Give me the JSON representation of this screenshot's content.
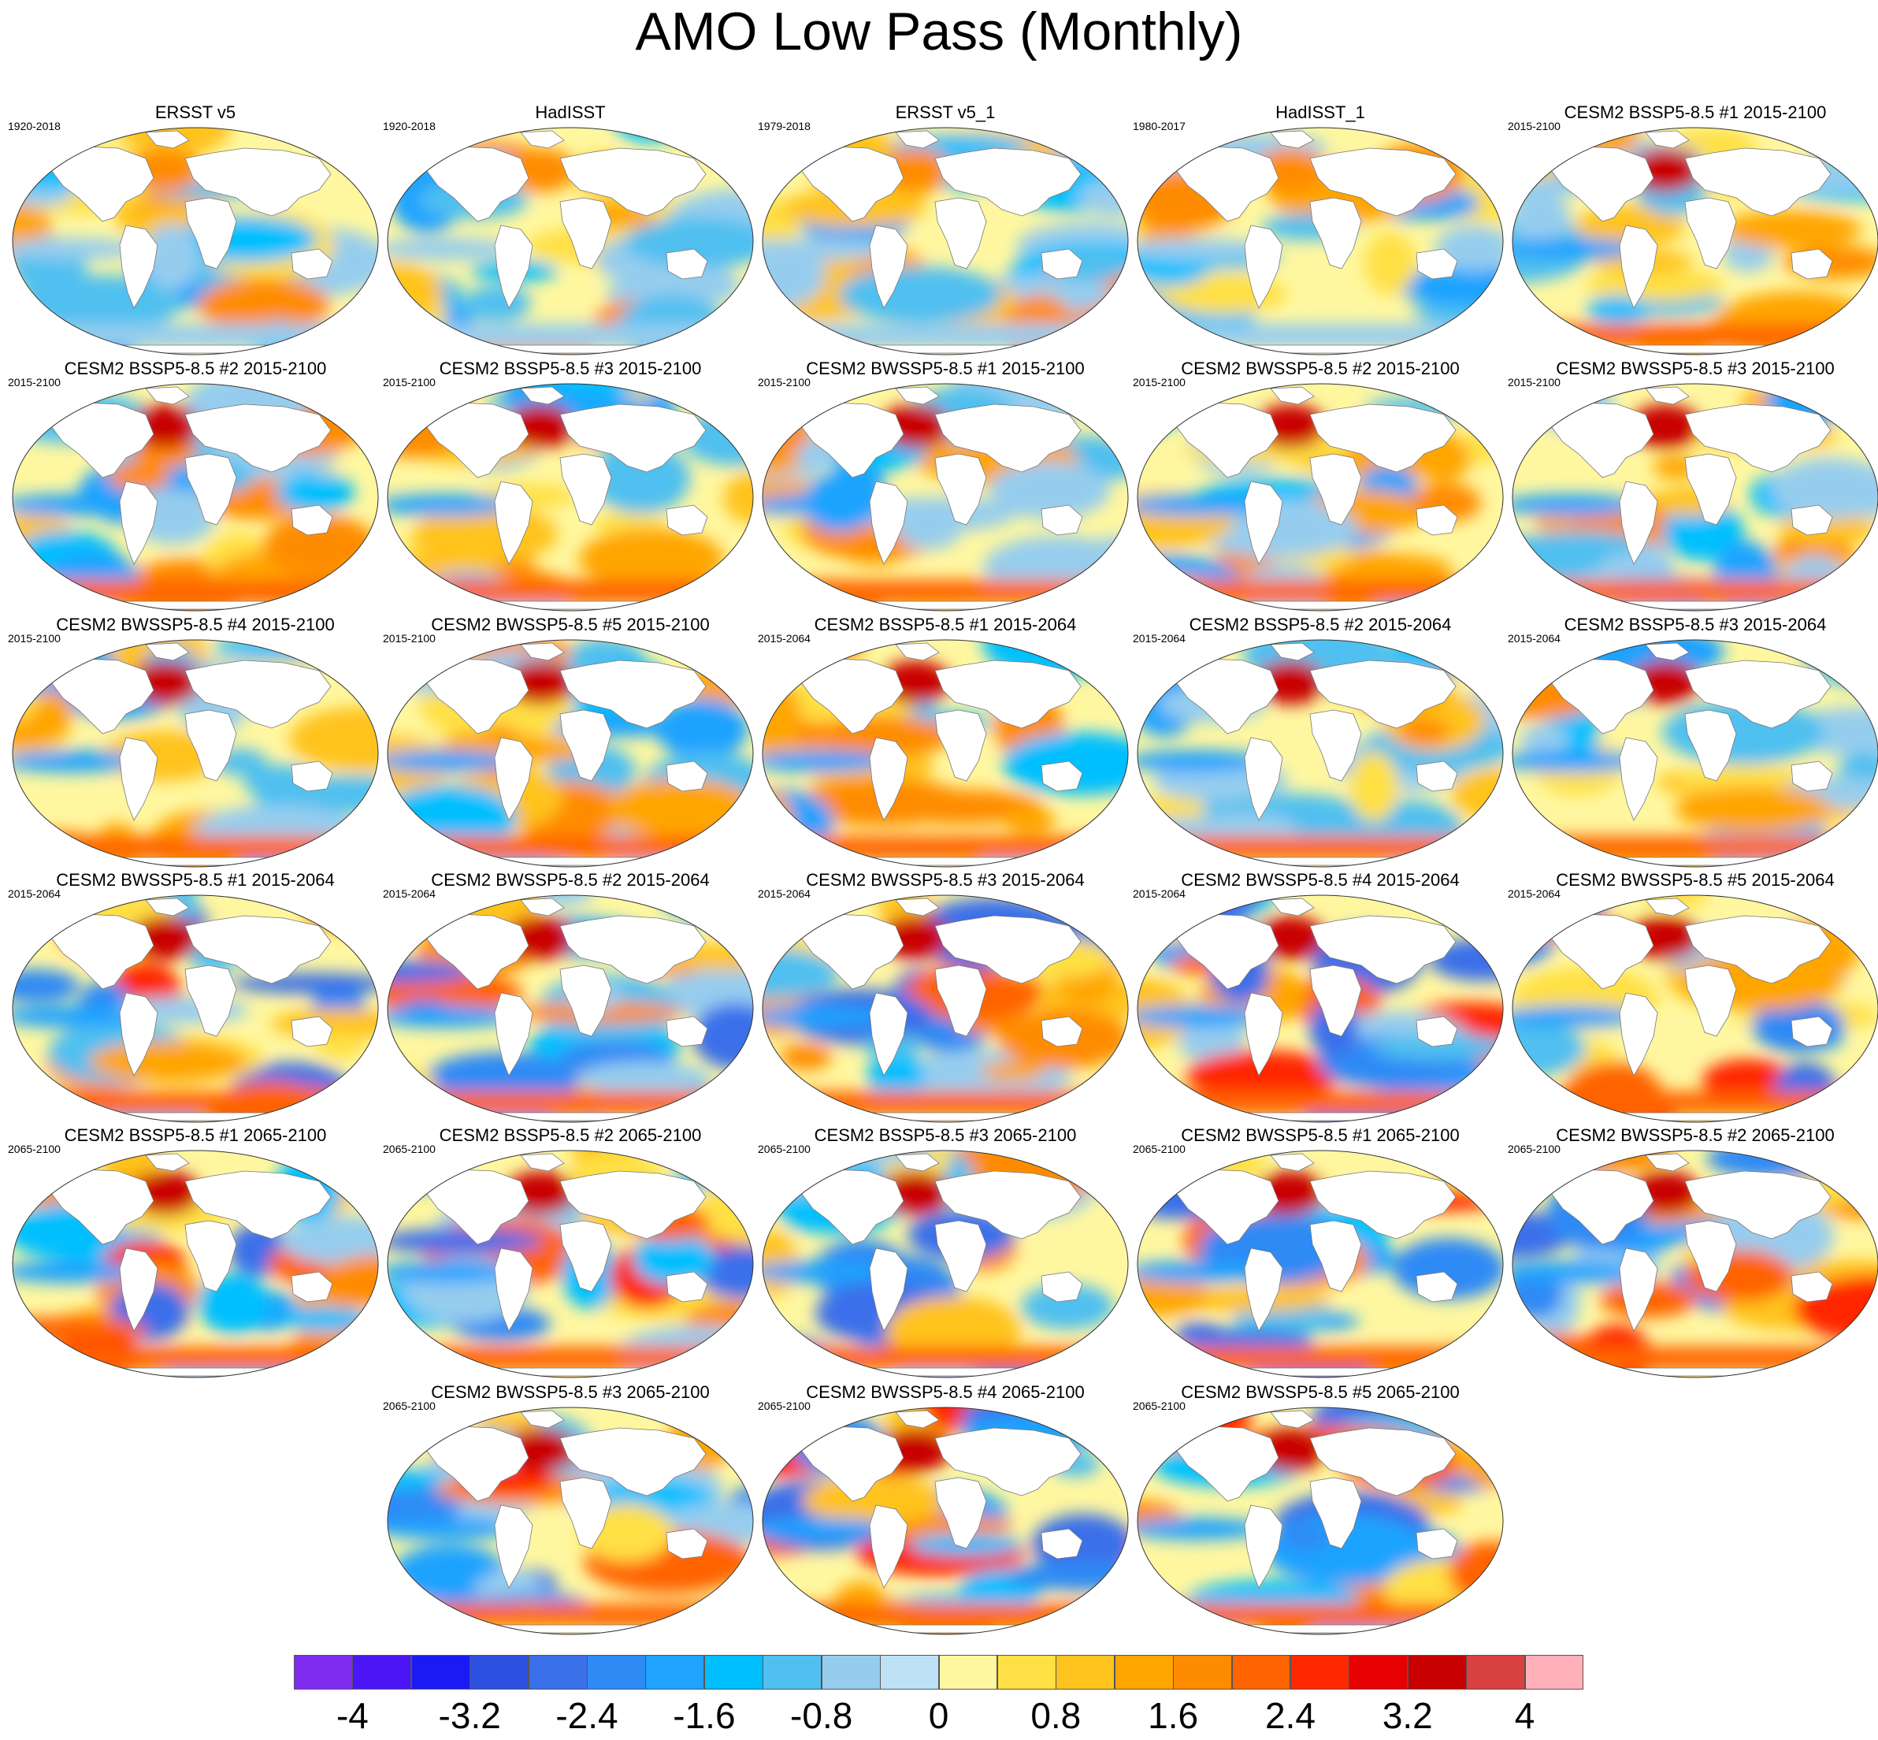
{
  "title": "AMO Low Pass (Monthly)",
  "colorbar": {
    "colors": [
      "#7f2bf0",
      "#4b15f5",
      "#1a1af5",
      "#2d4fe0",
      "#3a70ea",
      "#2e8af5",
      "#1fa3ff",
      "#00bfff",
      "#50c0f0",
      "#96cdee",
      "#bde2f5",
      "#fff7a0",
      "#ffe045",
      "#ffc31e",
      "#ffa500",
      "#ff8c00",
      "#ff6400",
      "#ff2800",
      "#e60000",
      "#c80000",
      "#d94040",
      "#ffb0b8"
    ],
    "labels": [
      "-4",
      "-3.2",
      "-2.4",
      "-1.6",
      "-0.8",
      "0",
      "0.8",
      "1.6",
      "2.4",
      "3.2",
      "4"
    ]
  },
  "panels": [
    {
      "title": "ERSST v5",
      "period": "1920-2018"
    },
    {
      "title": "HadISST",
      "period": "1920-2018"
    },
    {
      "title": "ERSST v5_1",
      "period": "1979-2018"
    },
    {
      "title": "HadISST_1",
      "period": "1980-2017"
    },
    {
      "title": "CESM2 BSSP5-8.5 #1 2015-2100",
      "period": "2015-2100"
    },
    {
      "title": "CESM2 BSSP5-8.5 #2 2015-2100",
      "period": "2015-2100"
    },
    {
      "title": "CESM2 BSSP5-8.5 #3 2015-2100",
      "period": "2015-2100"
    },
    {
      "title": "CESM2 BWSSP5-8.5 #1 2015-2100",
      "period": "2015-2100"
    },
    {
      "title": "CESM2 BWSSP5-8.5 #2 2015-2100",
      "period": "2015-2100"
    },
    {
      "title": "CESM2 BWSSP5-8.5 #3 2015-2100",
      "period": "2015-2100"
    },
    {
      "title": "CESM2 BWSSP5-8.5 #4 2015-2100",
      "period": "2015-2100"
    },
    {
      "title": "CESM2 BWSSP5-8.5 #5 2015-2100",
      "period": "2015-2100"
    },
    {
      "title": "CESM2 BSSP5-8.5 #1 2015-2064",
      "period": "2015-2064"
    },
    {
      "title": "CESM2 BSSP5-8.5 #2 2015-2064",
      "period": "2015-2064"
    },
    {
      "title": "CESM2 BSSP5-8.5 #3 2015-2064",
      "period": "2015-2064"
    },
    {
      "title": "CESM2 BWSSP5-8.5 #1 2015-2064",
      "period": "2015-2064"
    },
    {
      "title": "CESM2 BWSSP5-8.5 #2 2015-2064",
      "period": "2015-2064"
    },
    {
      "title": "CESM2 BWSSP5-8.5 #3 2015-2064",
      "period": "2015-2064"
    },
    {
      "title": "CESM2 BWSSP5-8.5 #4 2015-2064",
      "period": "2015-2064"
    },
    {
      "title": "CESM2 BWSSP5-8.5 #5 2015-2064",
      "period": "2015-2064"
    },
    {
      "title": "CESM2 BSSP5-8.5 #1 2065-2100",
      "period": "2065-2100"
    },
    {
      "title": "CESM2 BSSP5-8.5 #2 2065-2100",
      "period": "2065-2100"
    },
    {
      "title": "CESM2 BSSP5-8.5 #3 2065-2100",
      "period": "2065-2100"
    },
    {
      "title": "CESM2 BWSSP5-8.5 #1 2065-2100",
      "period": "2065-2100"
    },
    {
      "title": "CESM2 BWSSP5-8.5 #2 2065-2100",
      "period": "2065-2100"
    },
    {
      "title": "CESM2 BWSSP5-8.5 #3 2065-2100",
      "period": "2065-2100"
    },
    {
      "title": "CESM2 BWSSP5-8.5 #4 2065-2100",
      "period": "2065-2100"
    },
    {
      "title": "CESM2 BWSSP5-8.5 #5 2065-2100",
      "period": "2065-2100"
    }
  ]
}
